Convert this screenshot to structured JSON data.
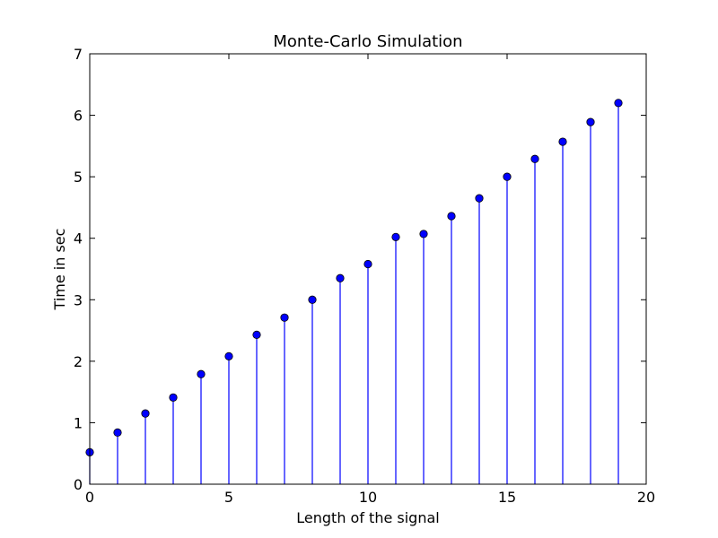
{
  "chart_data": {
    "type": "stem",
    "title": "Monte-Carlo Simulation",
    "xlabel": "Length of the signal",
    "ylabel": "Time in sec",
    "xlim": [
      0,
      20
    ],
    "ylim": [
      0,
      7
    ],
    "xticks": [
      "0",
      "5",
      "10",
      "15",
      "20"
    ],
    "yticks": [
      "0",
      "1",
      "2",
      "3",
      "4",
      "5",
      "6",
      "7"
    ],
    "grid": false,
    "series": [
      {
        "color": "#0000ff",
        "x": [
          0,
          1,
          2,
          3,
          4,
          5,
          6,
          7,
          8,
          9,
          10,
          11,
          12,
          13,
          14,
          15,
          16,
          17,
          18,
          19
        ],
        "y": [
          0.52,
          0.84,
          1.15,
          1.41,
          1.79,
          2.08,
          2.43,
          2.71,
          3.0,
          3.35,
          3.58,
          4.02,
          4.07,
          4.36,
          4.65,
          5.0,
          5.29,
          5.57,
          5.89,
          6.2
        ]
      }
    ]
  }
}
